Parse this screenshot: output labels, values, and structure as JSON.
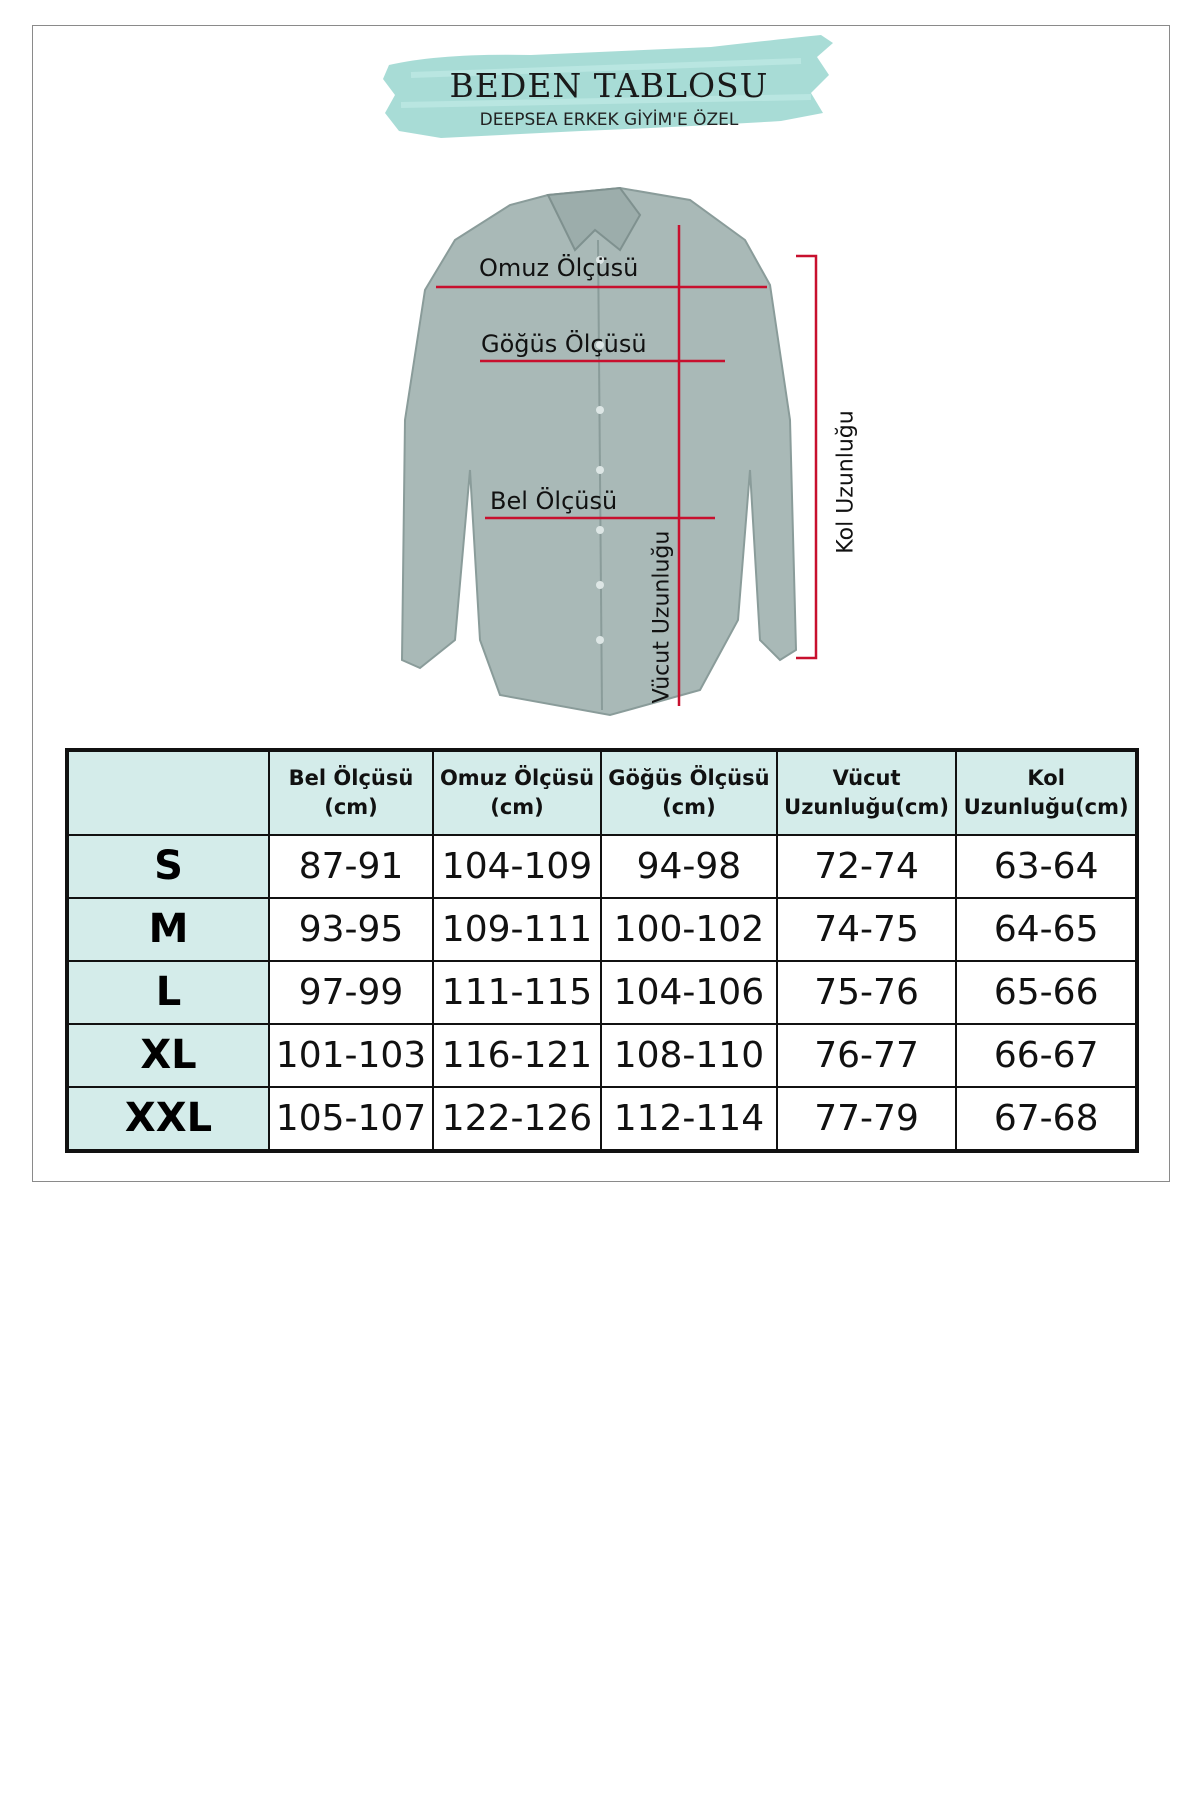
{
  "header": {
    "title": "BEDEN TABLOSU",
    "subtitle": "DEEPSEA ERKEK GİYİM'E ÖZEL",
    "brush_color": "#9fd8d2"
  },
  "diagram": {
    "labels": {
      "shoulder": "Omuz Ölçüsü",
      "chest": "Göğüs Ölçüsü",
      "waist": "Bel Ölçüsü",
      "body_length": "Vücut Uzunluğu",
      "sleeve_length": "Kol Uzunluğu"
    },
    "line_color": "#c8102e",
    "shirt_color": "#a9b9b7"
  },
  "table": {
    "header_bg": "#d4ecea",
    "columns": [
      {
        "line1": "Bel Ölçüsü",
        "line2": "(cm)"
      },
      {
        "line1": "Omuz Ölçüsü",
        "line2": "(cm)"
      },
      {
        "line1": "Göğüs Ölçüsü",
        "line2": "(cm)"
      },
      {
        "line1": "Vücut",
        "line2": "Uzunluğu(cm)"
      },
      {
        "line1": "Kol",
        "line2": "Uzunluğu(cm)"
      }
    ],
    "rows": [
      {
        "size": "S",
        "values": [
          "87-91",
          "104-109",
          "94-98",
          "72-74",
          "63-64"
        ]
      },
      {
        "size": "M",
        "values": [
          "93-95",
          "109-111",
          "100-102",
          "74-75",
          "64-65"
        ]
      },
      {
        "size": "L",
        "values": [
          "97-99",
          "111-115",
          "104-106",
          "75-76",
          "65-66"
        ]
      },
      {
        "size": "XL",
        "values": [
          "101-103",
          "116-121",
          "108-110",
          "76-77",
          "66-67"
        ]
      },
      {
        "size": "XXL",
        "values": [
          "105-107",
          "122-126",
          "112-114",
          "77-79",
          "67-68"
        ]
      }
    ]
  }
}
